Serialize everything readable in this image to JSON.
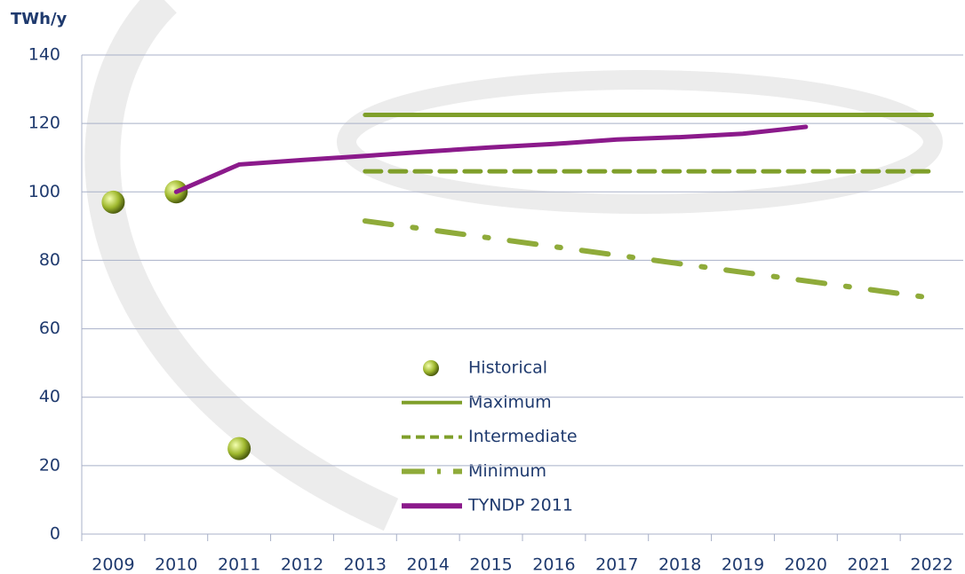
{
  "chart_data": {
    "type": "line",
    "y_label": "TWh/y",
    "categories": [
      "2009",
      "2010",
      "2011",
      "2012",
      "2013",
      "2014",
      "2015",
      "2016",
      "2017",
      "2018",
      "2019",
      "2020",
      "2021",
      "2022"
    ],
    "ylim": [
      0,
      140
    ],
    "yticks": [
      0,
      20,
      40,
      60,
      80,
      100,
      120,
      140
    ],
    "grid": true,
    "series": [
      {
        "name": "Historical",
        "color": "#9fb82e",
        "style": "markers",
        "values": [
          97,
          100,
          25,
          null,
          null,
          null,
          null,
          null,
          null,
          null,
          null,
          null,
          null,
          null
        ]
      },
      {
        "name": "Maximum",
        "color": "#7f9f2a",
        "style": "solid",
        "values": [
          null,
          null,
          null,
          null,
          122.5,
          122.5,
          122.5,
          122.5,
          122.5,
          122.5,
          122.5,
          122.5,
          122.5,
          122.5
        ]
      },
      {
        "name": "Intermediate",
        "color": "#7f9f2a",
        "style": "dashed",
        "values": [
          null,
          null,
          null,
          null,
          106,
          106,
          106,
          106,
          106,
          106,
          106,
          106,
          106,
          106
        ]
      },
      {
        "name": "Minimum",
        "color": "#8fab3a",
        "style": "dashdot",
        "values": [
          null,
          null,
          null,
          null,
          91.5,
          89,
          86.5,
          84,
          81.5,
          79,
          76.5,
          74,
          71.5,
          69
        ]
      },
      {
        "name": "TYNDP 2011",
        "color": "#8b1a8b",
        "style": "solid",
        "values": [
          null,
          100,
          108,
          109.3,
          110.5,
          111.8,
          113,
          114,
          115.3,
          116,
          117,
          119,
          null,
          null
        ]
      }
    ]
  }
}
